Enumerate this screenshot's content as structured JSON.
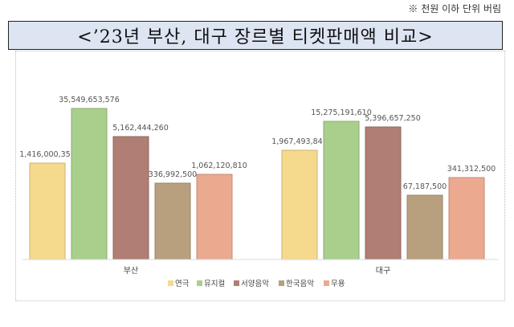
{
  "note": "※ 천원 이하 단위 버림",
  "title": "<’23년 부산, 대구 장르별 티켓판매액 비교>",
  "colors": {
    "연극": "#f5d98c",
    "뮤지컬": "#a9cf8c",
    "서양음악": "#b07e74",
    "한국음악": "#b8a07e",
    "무용": "#eba98f"
  },
  "chart_data": {
    "type": "bar",
    "categories": [
      "부산",
      "대구"
    ],
    "series": [
      {
        "name": "연극",
        "values": [
          1416000350,
          1967493840
        ],
        "labels": [
          "1,416,000,350",
          "1,967,493,840"
        ]
      },
      {
        "name": "뮤지컬",
        "values": [
          35549653576,
          15275191610
        ],
        "labels": [
          "35,549,653,576",
          "15,275,191,610"
        ]
      },
      {
        "name": "서양음악",
        "values": [
          5162444260,
          5396657250
        ],
        "labels": [
          "5,162,444,260",
          "5,396,657,250"
        ]
      },
      {
        "name": "한국음악",
        "values": [
          336992500,
          67187500
        ],
        "labels": [
          "336,992,500",
          "67,187,500"
        ]
      },
      {
        "name": "무용",
        "values": [
          1062120810,
          341312500
        ],
        "labels": [
          "1,062,120,810",
          "341,312,500"
        ]
      }
    ],
    "legend_position": "bottom",
    "grid": false
  }
}
